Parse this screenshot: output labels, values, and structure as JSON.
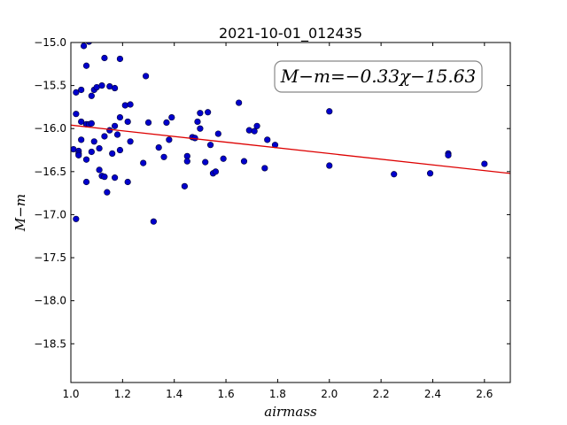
{
  "chart_data": {
    "type": "scatter",
    "title": "2021-10-01_012435",
    "xlabel": "airmass",
    "ylabel": "M−m",
    "xlim": [
      1.0,
      2.7
    ],
    "ylim": [
      -18.95,
      -15.0
    ],
    "y_inverted": true,
    "x_ticks": [
      "1.0",
      "1.2",
      "1.4",
      "1.6",
      "1.8",
      "2.0",
      "2.2",
      "2.4",
      "2.6"
    ],
    "x_tick_values": [
      1.0,
      1.2,
      1.4,
      1.6,
      1.8,
      2.0,
      2.2,
      2.4,
      2.6
    ],
    "y_ticks": [
      "−15.0",
      "−15.5",
      "−16.0",
      "−16.5",
      "−17.0",
      "−17.5",
      "−18.0",
      "−18.5"
    ],
    "y_tick_values": [
      -15.0,
      -15.5,
      -16.0,
      -16.5,
      -17.0,
      -17.5,
      -18.0,
      -18.5
    ],
    "grid": false,
    "point_color": "#0000cc",
    "fit_color": "#dd0000",
    "fit": {
      "slope": -0.33,
      "intercept": -15.63,
      "label": "M−m=−0.33χ−15.63"
    },
    "points": [
      [
        1.01,
        -16.24
      ],
      [
        1.02,
        -15.83
      ],
      [
        1.02,
        -15.58
      ],
      [
        1.02,
        -17.05
      ],
      [
        1.03,
        -16.26
      ],
      [
        1.03,
        -16.29
      ],
      [
        1.03,
        -16.31
      ],
      [
        1.04,
        -15.92
      ],
      [
        1.04,
        -16.13
      ],
      [
        1.04,
        -15.55
      ],
      [
        1.05,
        -15.04
      ],
      [
        1.06,
        -15.27
      ],
      [
        1.06,
        -15.95
      ],
      [
        1.06,
        -16.62
      ],
      [
        1.06,
        -16.36
      ],
      [
        1.07,
        -14.99
      ],
      [
        1.07,
        -15.95
      ],
      [
        1.08,
        -15.94
      ],
      [
        1.08,
        -16.27
      ],
      [
        1.08,
        -15.62
      ],
      [
        1.09,
        -16.15
      ],
      [
        1.09,
        -15.55
      ],
      [
        1.1,
        -15.52
      ],
      [
        1.11,
        -16.23
      ],
      [
        1.11,
        -16.48
      ],
      [
        1.12,
        -16.55
      ],
      [
        1.12,
        -15.5
      ],
      [
        1.13,
        -16.56
      ],
      [
        1.13,
        -15.18
      ],
      [
        1.13,
        -16.09
      ],
      [
        1.14,
        -16.74
      ],
      [
        1.15,
        -15.51
      ],
      [
        1.15,
        -16.02
      ],
      [
        1.16,
        -16.29
      ],
      [
        1.17,
        -15.97
      ],
      [
        1.17,
        -16.57
      ],
      [
        1.17,
        -15.53
      ],
      [
        1.18,
        -16.07
      ],
      [
        1.19,
        -15.19
      ],
      [
        1.19,
        -16.25
      ],
      [
        1.19,
        -15.87
      ],
      [
        1.21,
        -15.73
      ],
      [
        1.22,
        -16.62
      ],
      [
        1.22,
        -15.92
      ],
      [
        1.23,
        -15.72
      ],
      [
        1.23,
        -16.15
      ],
      [
        1.28,
        -16.4
      ],
      [
        1.29,
        -15.39
      ],
      [
        1.3,
        -15.93
      ],
      [
        1.32,
        -17.08
      ],
      [
        1.34,
        -16.22
      ],
      [
        1.36,
        -16.33
      ],
      [
        1.37,
        -15.93
      ],
      [
        1.38,
        -16.13
      ],
      [
        1.39,
        -15.87
      ],
      [
        1.44,
        -16.67
      ],
      [
        1.45,
        -16.32
      ],
      [
        1.45,
        -16.38
      ],
      [
        1.47,
        -16.1
      ],
      [
        1.48,
        -16.11
      ],
      [
        1.49,
        -15.92
      ],
      [
        1.5,
        -16.0
      ],
      [
        1.5,
        -15.82
      ],
      [
        1.52,
        -16.39
      ],
      [
        1.53,
        -15.81
      ],
      [
        1.54,
        -16.19
      ],
      [
        1.55,
        -16.52
      ],
      [
        1.56,
        -16.5
      ],
      [
        1.57,
        -16.06
      ],
      [
        1.59,
        -16.35
      ],
      [
        1.65,
        -15.7
      ],
      [
        1.67,
        -16.38
      ],
      [
        1.69,
        -16.02
      ],
      [
        1.71,
        -16.03
      ],
      [
        1.72,
        -15.97
      ],
      [
        1.75,
        -16.46
      ],
      [
        1.76,
        -16.13
      ],
      [
        1.79,
        -16.19
      ],
      [
        2.0,
        -15.8
      ],
      [
        2.0,
        -16.43
      ],
      [
        2.25,
        -16.53
      ],
      [
        2.39,
        -16.52
      ],
      [
        2.46,
        -16.29
      ],
      [
        2.46,
        -16.31
      ],
      [
        2.6,
        -16.41
      ]
    ]
  }
}
